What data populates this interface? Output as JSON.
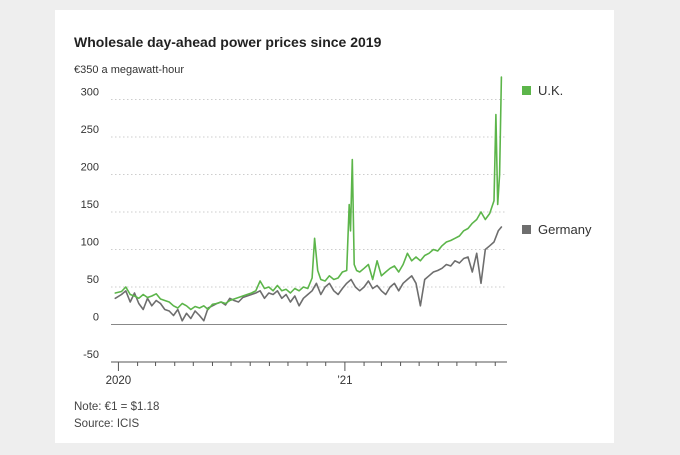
{
  "chart_data": {
    "type": "line",
    "title": "Wholesale day-ahead power prices since 2019",
    "ylabel": "€350 a megawatt-hour",
    "yticks": [
      -50,
      0,
      50,
      100,
      150,
      200,
      250,
      300
    ],
    "ytick_labels": [
      "-50",
      "0",
      "50",
      "100",
      "150",
      "200",
      "250",
      "300"
    ],
    "ylim": [
      -50,
      350
    ],
    "xlim": [
      "2019-12-20",
      "2021-09-20"
    ],
    "xticks": [
      {
        "date": "2020-01-01",
        "label": "2020"
      },
      {
        "date": "2021-01-01",
        "label": "’21"
      }
    ],
    "legend": "right",
    "grid": "horizontal-dotted",
    "series": [
      {
        "name": "U.K.",
        "color": "#5cb54a",
        "points": [
          [
            "2019-12-27",
            42
          ],
          [
            "2020-01-06",
            44
          ],
          [
            "2020-01-13",
            50
          ],
          [
            "2020-01-20",
            40
          ],
          [
            "2020-01-27",
            38
          ],
          [
            "2020-02-03",
            35
          ],
          [
            "2020-02-10",
            40
          ],
          [
            "2020-02-17",
            36
          ],
          [
            "2020-02-24",
            38
          ],
          [
            "2020-03-02",
            41
          ],
          [
            "2020-03-09",
            34
          ],
          [
            "2020-03-16",
            32
          ],
          [
            "2020-03-23",
            30
          ],
          [
            "2020-03-30",
            25
          ],
          [
            "2020-04-06",
            22
          ],
          [
            "2020-04-13",
            28
          ],
          [
            "2020-04-20",
            25
          ],
          [
            "2020-04-27",
            20
          ],
          [
            "2020-05-04",
            24
          ],
          [
            "2020-05-11",
            22
          ],
          [
            "2020-05-18",
            25
          ],
          [
            "2020-05-25",
            20
          ],
          [
            "2020-06-01",
            27
          ],
          [
            "2020-06-08",
            28
          ],
          [
            "2020-06-15",
            30
          ],
          [
            "2020-06-22",
            28
          ],
          [
            "2020-06-29",
            32
          ],
          [
            "2020-07-06",
            34
          ],
          [
            "2020-07-13",
            36
          ],
          [
            "2020-07-20",
            38
          ],
          [
            "2020-07-27",
            40
          ],
          [
            "2020-08-03",
            42
          ],
          [
            "2020-08-10",
            45
          ],
          [
            "2020-08-17",
            58
          ],
          [
            "2020-08-24",
            48
          ],
          [
            "2020-08-31",
            50
          ],
          [
            "2020-09-07",
            45
          ],
          [
            "2020-09-14",
            52
          ],
          [
            "2020-09-21",
            45
          ],
          [
            "2020-09-28",
            47
          ],
          [
            "2020-10-05",
            42
          ],
          [
            "2020-10-12",
            48
          ],
          [
            "2020-10-19",
            45
          ],
          [
            "2020-10-26",
            50
          ],
          [
            "2020-11-02",
            48
          ],
          [
            "2020-11-09",
            62
          ],
          [
            "2020-11-13",
            115
          ],
          [
            "2020-11-18",
            72
          ],
          [
            "2020-11-23",
            60
          ],
          [
            "2020-11-30",
            58
          ],
          [
            "2020-12-07",
            65
          ],
          [
            "2020-12-14",
            60
          ],
          [
            "2020-12-21",
            62
          ],
          [
            "2020-12-28",
            70
          ],
          [
            "2021-01-04",
            72
          ],
          [
            "2021-01-08",
            160
          ],
          [
            "2021-01-10",
            125
          ],
          [
            "2021-01-13",
            220
          ],
          [
            "2021-01-16",
            80
          ],
          [
            "2021-01-20",
            72
          ],
          [
            "2021-01-25",
            70
          ],
          [
            "2021-02-01",
            75
          ],
          [
            "2021-02-08",
            80
          ],
          [
            "2021-02-15",
            60
          ],
          [
            "2021-02-22",
            85
          ],
          [
            "2021-03-01",
            65
          ],
          [
            "2021-03-08",
            70
          ],
          [
            "2021-03-15",
            75
          ],
          [
            "2021-03-22",
            78
          ],
          [
            "2021-03-29",
            70
          ],
          [
            "2021-04-05",
            80
          ],
          [
            "2021-04-12",
            95
          ],
          [
            "2021-04-19",
            85
          ],
          [
            "2021-04-26",
            90
          ],
          [
            "2021-05-03",
            85
          ],
          [
            "2021-05-10",
            92
          ],
          [
            "2021-05-17",
            95
          ],
          [
            "2021-05-24",
            100
          ],
          [
            "2021-05-31",
            98
          ],
          [
            "2021-06-07",
            105
          ],
          [
            "2021-06-14",
            110
          ],
          [
            "2021-06-21",
            112
          ],
          [
            "2021-06-28",
            115
          ],
          [
            "2021-07-05",
            118
          ],
          [
            "2021-07-12",
            125
          ],
          [
            "2021-07-19",
            128
          ],
          [
            "2021-07-26",
            135
          ],
          [
            "2021-08-02",
            140
          ],
          [
            "2021-08-09",
            150
          ],
          [
            "2021-08-16",
            140
          ],
          [
            "2021-08-23",
            148
          ],
          [
            "2021-08-30",
            165
          ],
          [
            "2021-09-02",
            280
          ],
          [
            "2021-09-05",
            160
          ],
          [
            "2021-09-08",
            200
          ],
          [
            "2021-09-11",
            330
          ]
        ]
      },
      {
        "name": "Germany",
        "color": "#6e6e6e",
        "points": [
          [
            "2019-12-27",
            35
          ],
          [
            "2020-01-06",
            40
          ],
          [
            "2020-01-13",
            45
          ],
          [
            "2020-01-20",
            30
          ],
          [
            "2020-01-27",
            42
          ],
          [
            "2020-02-03",
            28
          ],
          [
            "2020-02-10",
            20
          ],
          [
            "2020-02-17",
            35
          ],
          [
            "2020-02-24",
            25
          ],
          [
            "2020-03-02",
            32
          ],
          [
            "2020-03-09",
            28
          ],
          [
            "2020-03-16",
            20
          ],
          [
            "2020-03-23",
            18
          ],
          [
            "2020-03-30",
            12
          ],
          [
            "2020-04-06",
            20
          ],
          [
            "2020-04-13",
            5
          ],
          [
            "2020-04-20",
            15
          ],
          [
            "2020-04-27",
            8
          ],
          [
            "2020-05-04",
            18
          ],
          [
            "2020-05-11",
            12
          ],
          [
            "2020-05-18",
            5
          ],
          [
            "2020-05-25",
            22
          ],
          [
            "2020-06-01",
            25
          ],
          [
            "2020-06-08",
            28
          ],
          [
            "2020-06-15",
            30
          ],
          [
            "2020-06-22",
            26
          ],
          [
            "2020-06-29",
            35
          ],
          [
            "2020-07-06",
            32
          ],
          [
            "2020-07-13",
            30
          ],
          [
            "2020-07-20",
            36
          ],
          [
            "2020-07-27",
            38
          ],
          [
            "2020-08-03",
            40
          ],
          [
            "2020-08-10",
            42
          ],
          [
            "2020-08-17",
            45
          ],
          [
            "2020-08-24",
            35
          ],
          [
            "2020-08-31",
            42
          ],
          [
            "2020-09-07",
            40
          ],
          [
            "2020-09-14",
            45
          ],
          [
            "2020-09-21",
            35
          ],
          [
            "2020-09-28",
            40
          ],
          [
            "2020-10-05",
            30
          ],
          [
            "2020-10-12",
            38
          ],
          [
            "2020-10-19",
            25
          ],
          [
            "2020-10-26",
            35
          ],
          [
            "2020-11-02",
            40
          ],
          [
            "2020-11-09",
            45
          ],
          [
            "2020-11-16",
            55
          ],
          [
            "2020-11-23",
            40
          ],
          [
            "2020-11-30",
            50
          ],
          [
            "2020-12-07",
            55
          ],
          [
            "2020-12-14",
            45
          ],
          [
            "2020-12-21",
            40
          ],
          [
            "2020-12-28",
            48
          ],
          [
            "2021-01-04",
            55
          ],
          [
            "2021-01-11",
            60
          ],
          [
            "2021-01-18",
            50
          ],
          [
            "2021-01-25",
            45
          ],
          [
            "2021-02-01",
            50
          ],
          [
            "2021-02-08",
            58
          ],
          [
            "2021-02-15",
            48
          ],
          [
            "2021-02-22",
            52
          ],
          [
            "2021-03-01",
            45
          ],
          [
            "2021-03-08",
            40
          ],
          [
            "2021-03-15",
            50
          ],
          [
            "2021-03-22",
            55
          ],
          [
            "2021-03-29",
            45
          ],
          [
            "2021-04-05",
            55
          ],
          [
            "2021-04-12",
            60
          ],
          [
            "2021-04-19",
            65
          ],
          [
            "2021-04-26",
            55
          ],
          [
            "2021-05-03",
            25
          ],
          [
            "2021-05-10",
            60
          ],
          [
            "2021-05-17",
            65
          ],
          [
            "2021-05-24",
            70
          ],
          [
            "2021-05-31",
            72
          ],
          [
            "2021-06-07",
            75
          ],
          [
            "2021-06-14",
            80
          ],
          [
            "2021-06-21",
            78
          ],
          [
            "2021-06-28",
            85
          ],
          [
            "2021-07-05",
            82
          ],
          [
            "2021-07-12",
            88
          ],
          [
            "2021-07-19",
            90
          ],
          [
            "2021-07-26",
            70
          ],
          [
            "2021-08-02",
            95
          ],
          [
            "2021-08-09",
            55
          ],
          [
            "2021-08-16",
            100
          ],
          [
            "2021-08-23",
            105
          ],
          [
            "2021-08-30",
            110
          ],
          [
            "2021-09-06",
            125
          ],
          [
            "2021-09-11",
            130
          ]
        ]
      }
    ]
  },
  "footnotes": {
    "note": "Note: €1 = $1.18",
    "source": "Source: ICIS"
  }
}
